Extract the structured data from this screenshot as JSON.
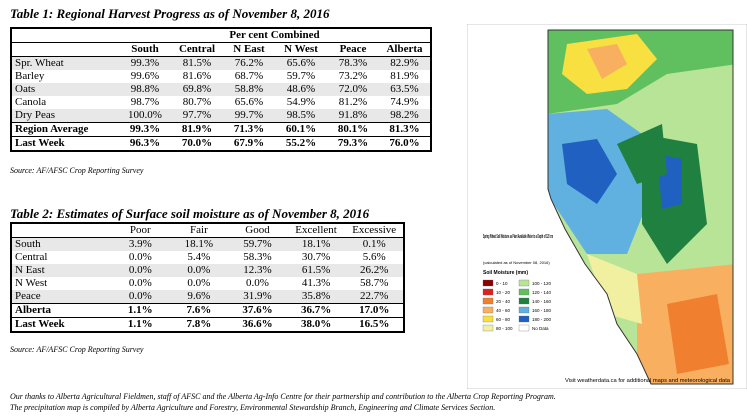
{
  "table1": {
    "title": "Table 1: Regional Harvest Progress as of November 8, 2016",
    "group_header": "Per cent Combined",
    "columns": [
      "South",
      "Central",
      "N East",
      "N West",
      "Peace",
      "Alberta"
    ],
    "rows": [
      {
        "label": "Spr. Wheat",
        "cells": [
          "99.3%",
          "81.5%",
          "76.2%",
          "65.6%",
          "78.3%",
          "82.9%"
        ]
      },
      {
        "label": "Barley",
        "cells": [
          "99.6%",
          "81.6%",
          "68.7%",
          "59.7%",
          "73.2%",
          "81.9%"
        ]
      },
      {
        "label": "Oats",
        "cells": [
          "98.8%",
          "69.8%",
          "58.8%",
          "48.6%",
          "72.0%",
          "63.5%"
        ]
      },
      {
        "label": "Canola",
        "cells": [
          "98.7%",
          "80.7%",
          "65.6%",
          "54.9%",
          "81.2%",
          "74.9%"
        ]
      },
      {
        "label": "Dry Peas",
        "cells": [
          "100.0%",
          "97.7%",
          "99.7%",
          "98.5%",
          "91.8%",
          "98.2%"
        ]
      },
      {
        "label": "Region Average",
        "cells": [
          "99.3%",
          "81.9%",
          "71.3%",
          "60.1%",
          "80.1%",
          "81.3%"
        ]
      },
      {
        "label": "Last Week",
        "cells": [
          "96.3%",
          "70.0%",
          "67.9%",
          "55.2%",
          "79.3%",
          "76.0%"
        ]
      }
    ],
    "source": "Source: AF/AFSC Crop Reporting Survey"
  },
  "table2": {
    "title": "Table 2: Estimates of Surface soil moisture as of November 8, 2016",
    "columns": [
      "Poor",
      "Fair",
      "Good",
      "Excellent",
      "Excessive"
    ],
    "rows": [
      {
        "label": "South",
        "cells": [
          "3.9%",
          "18.1%",
          "59.7%",
          "18.1%",
          "0.1%"
        ]
      },
      {
        "label": "Central",
        "cells": [
          "0.0%",
          "5.4%",
          "58.3%",
          "30.7%",
          "5.6%"
        ]
      },
      {
        "label": "N East",
        "cells": [
          "0.0%",
          "0.0%",
          "12.3%",
          "61.5%",
          "26.2%"
        ]
      },
      {
        "label": "N West",
        "cells": [
          "0.0%",
          "0.0%",
          "0.0%",
          "41.3%",
          "58.7%"
        ]
      },
      {
        "label": "Peace",
        "cells": [
          "0.0%",
          "9.6%",
          "31.9%",
          "35.8%",
          "22.7%"
        ]
      },
      {
        "label": "Alberta",
        "cells": [
          "1.1%",
          "7.6%",
          "37.6%",
          "36.7%",
          "17.0%"
        ]
      },
      {
        "label": "Last Week",
        "cells": [
          "1.1%",
          "7.8%",
          "36.6%",
          "38.0%",
          "16.5%"
        ]
      }
    ],
    "source": "Source: AF/AFSC Crop Reporting Survey"
  },
  "map": {
    "title": "Spring Wheat Soil Moisture as Plant Available Water to a Depth of 120 cm",
    "date_note": "(calculated as of November 08, 2016)",
    "legend_title": "Soil Moisture (mm)",
    "legend": [
      {
        "label": "0 - 10",
        "color": "#8b0000"
      },
      {
        "label": "10 - 20",
        "color": "#e02020"
      },
      {
        "label": "20 - 40",
        "color": "#f08030"
      },
      {
        "label": "40 - 60",
        "color": "#f8b060"
      },
      {
        "label": "60 - 80",
        "color": "#f8e040"
      },
      {
        "label": "80 - 100",
        "color": "#f0f0a0"
      },
      {
        "label": "100 - 120",
        "color": "#b8e498"
      },
      {
        "label": "120 - 140",
        "color": "#60c060"
      },
      {
        "label": "140 - 160",
        "color": "#208040"
      },
      {
        "label": "160 - 180",
        "color": "#60b0e0"
      },
      {
        "label": "180 - 200",
        "color": "#2060c0"
      },
      {
        "label": "No Data",
        "color": "#ffffff"
      }
    ],
    "footer": "Visit weatherdata.ca for additional maps and meteorological data"
  },
  "footnotes": [
    "Our thanks to Alberta Agricultural Fieldmen, staff of AFSC and the Alberta Ag-Info Centre for their partnership and contribution to the Alberta Crop Reporting Program.",
    "The precipitation map is compiled by Alberta Agriculture and Forestry, Environmental Stewardship Branch, Engineering and Climate Services Section."
  ]
}
